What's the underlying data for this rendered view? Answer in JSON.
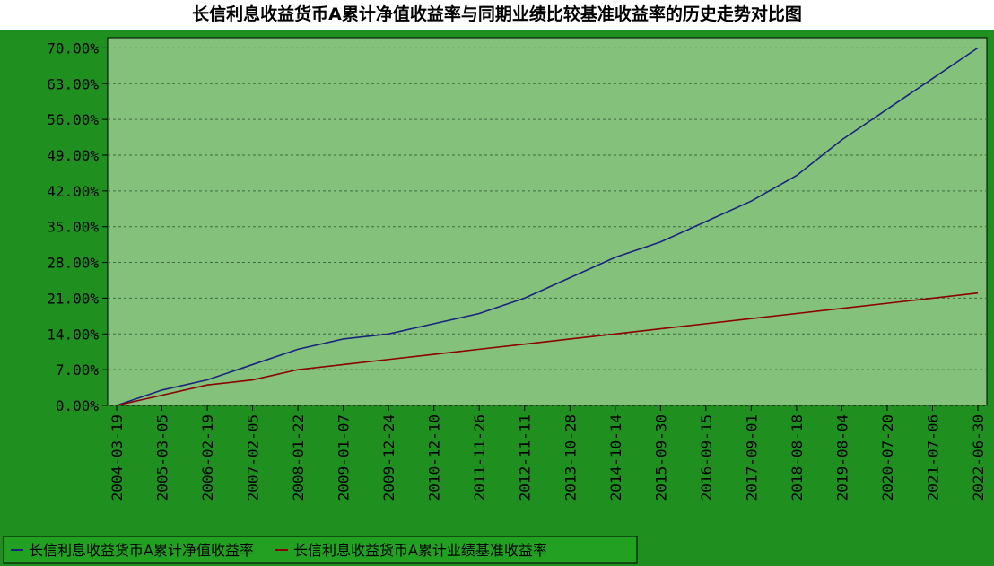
{
  "chart_data": {
    "type": "line",
    "title": "长信利息收益货币A累计净值收益率与同期业绩比较基准收益率的历史走势对比图",
    "categories": [
      "2004-03-19",
      "2005-03-05",
      "2006-02-19",
      "2007-02-05",
      "2008-01-22",
      "2009-01-07",
      "2009-12-24",
      "2010-12-10",
      "2011-11-26",
      "2012-11-11",
      "2013-10-28",
      "2014-10-14",
      "2015-09-30",
      "2016-09-15",
      "2017-09-01",
      "2018-08-18",
      "2019-08-04",
      "2020-07-20",
      "2021-07-06",
      "2022-06-30"
    ],
    "series": [
      {
        "name": "长信利息收益货币A累计净值收益率",
        "color": "#1a237e",
        "values": [
          0,
          3,
          5,
          8,
          11,
          13,
          14,
          16,
          18,
          21,
          25,
          29,
          32,
          36,
          40,
          45,
          52,
          58,
          64,
          70
        ]
      },
      {
        "name": "长信利息收益货币A累计业绩基准收益率",
        "color": "#8b0000",
        "values": [
          0,
          2,
          4,
          5,
          7,
          8,
          9,
          10,
          11,
          12,
          13,
          14,
          15,
          16,
          17,
          18,
          19,
          20,
          21,
          22
        ]
      }
    ],
    "ylim": [
      0,
      72
    ],
    "yticks": [
      {
        "value": 0,
        "label": "0.00%"
      },
      {
        "value": 7,
        "label": "7.00%"
      },
      {
        "value": 14,
        "label": "14.00%"
      },
      {
        "value": 21,
        "label": "21.00%"
      },
      {
        "value": 28,
        "label": "28.00%"
      },
      {
        "value": 35,
        "label": "35.00%"
      },
      {
        "value": 42,
        "label": "42.00%"
      },
      {
        "value": 49,
        "label": "49.00%"
      },
      {
        "value": 56,
        "label": "56.00%"
      },
      {
        "value": 63,
        "label": "63.00%"
      },
      {
        "value": 70,
        "label": "70.00%"
      }
    ],
    "grid": true,
    "legend": "bottom"
  }
}
